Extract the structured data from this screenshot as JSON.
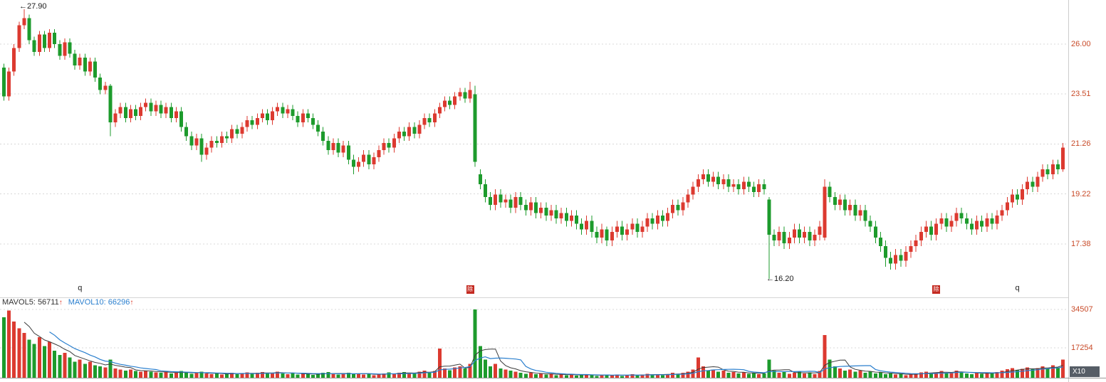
{
  "colors": {
    "up": "#dc3a30",
    "down": "#1d9b2c",
    "axis_text": "#c84a28",
    "grid": "#d8d8d8",
    "ma5": "#3c3c3c",
    "ma5_text": "#333333",
    "ma10": "#2a7fce",
    "arrow": "#dd3322",
    "badge_bg": "#c42a21",
    "x10_bg": "#565d66"
  },
  "axis": {
    "price_labels": [
      "26.00",
      "23.51",
      "21.26",
      "19.22",
      "17.38"
    ],
    "volume_labels": [
      "34507",
      "17254"
    ],
    "volume_multiplier": "X10"
  },
  "indicators": {
    "mavol5_name": "MAVOL5:",
    "mavol5_value": "56711",
    "mavol10_name": "MAVOL10:",
    "mavol10_value": "66296",
    "arrow": "↑"
  },
  "annotations": {
    "arrow_left": "←",
    "high": "27.90",
    "low": "16.20"
  },
  "chart_data": {
    "type": "candlestick_with_volume",
    "title": "",
    "price_scale": "log",
    "price_range_visible": [
      15.7,
      28.4
    ],
    "price_gridlines": [
      26.0,
      23.51,
      21.26,
      19.22,
      17.38
    ],
    "volume_gridlines": [
      34507,
      17254
    ],
    "high_marker": {
      "index": 4,
      "price": 27.9
    },
    "low_marker": {
      "index": 151,
      "price": 16.2
    },
    "event_markers": [
      {
        "index": 15,
        "label": "q",
        "type": "text"
      },
      {
        "index": 92,
        "label": "除",
        "type": "badge"
      },
      {
        "index": 184,
        "label": "除",
        "type": "badge"
      },
      {
        "index": 200,
        "label": "q",
        "type": "text"
      }
    ],
    "ohlc": [
      [
        24.8,
        25.0,
        23.2,
        23.4
      ],
      [
        23.4,
        24.8,
        23.2,
        24.6
      ],
      [
        24.6,
        26.0,
        24.4,
        25.8
      ],
      [
        25.8,
        27.2,
        25.6,
        27.0
      ],
      [
        27.0,
        27.9,
        26.8,
        27.4
      ],
      [
        27.4,
        27.6,
        26.0,
        26.2
      ],
      [
        26.2,
        26.4,
        25.4,
        25.6
      ],
      [
        25.6,
        26.7,
        25.4,
        26.5
      ],
      [
        26.5,
        26.7,
        25.6,
        25.8
      ],
      [
        25.8,
        26.8,
        25.6,
        26.6
      ],
      [
        26.6,
        26.8,
        25.8,
        26.0
      ],
      [
        26.0,
        26.2,
        25.2,
        25.4
      ],
      [
        25.4,
        26.3,
        25.2,
        26.1
      ],
      [
        26.1,
        26.3,
        25.3,
        25.5
      ],
      [
        25.5,
        25.7,
        24.7,
        24.9
      ],
      [
        24.9,
        25.5,
        24.7,
        25.3
      ],
      [
        25.3,
        25.5,
        24.4,
        24.6
      ],
      [
        24.6,
        25.3,
        24.4,
        25.1
      ],
      [
        25.1,
        25.3,
        24.1,
        24.3
      ],
      [
        24.3,
        24.5,
        23.5,
        23.7
      ],
      [
        23.7,
        24.1,
        23.5,
        23.9
      ],
      [
        23.9,
        24.0,
        21.6,
        22.2
      ],
      [
        22.2,
        22.8,
        22.0,
        22.6
      ],
      [
        22.6,
        23.1,
        22.4,
        22.9
      ],
      [
        22.9,
        23.1,
        22.2,
        22.4
      ],
      [
        22.4,
        23.0,
        22.2,
        22.8
      ],
      [
        22.8,
        23.0,
        22.3,
        22.5
      ],
      [
        22.5,
        23.1,
        22.3,
        22.9
      ],
      [
        22.9,
        23.3,
        22.7,
        23.1
      ],
      [
        23.1,
        23.3,
        22.5,
        22.7
      ],
      [
        22.7,
        23.2,
        22.5,
        23.0
      ],
      [
        23.0,
        23.2,
        22.4,
        22.6
      ],
      [
        22.6,
        23.1,
        22.4,
        22.9
      ],
      [
        22.9,
        23.1,
        22.2,
        22.4
      ],
      [
        22.4,
        22.9,
        22.2,
        22.7
      ],
      [
        22.7,
        22.9,
        21.8,
        22.0
      ],
      [
        22.0,
        22.2,
        21.4,
        21.6
      ],
      [
        21.6,
        21.8,
        21.0,
        21.2
      ],
      [
        21.2,
        21.7,
        21.0,
        21.5
      ],
      [
        21.5,
        21.7,
        20.5,
        20.8
      ],
      [
        20.8,
        21.3,
        20.6,
        21.1
      ],
      [
        21.1,
        21.6,
        20.9,
        21.4
      ],
      [
        21.4,
        21.6,
        21.1,
        21.3
      ],
      [
        21.3,
        21.8,
        21.1,
        21.6
      ],
      [
        21.6,
        21.8,
        21.3,
        21.5
      ],
      [
        21.5,
        22.1,
        21.3,
        21.9
      ],
      [
        21.9,
        22.1,
        21.5,
        21.7
      ],
      [
        21.7,
        22.2,
        21.5,
        22.0
      ],
      [
        22.0,
        22.5,
        21.8,
        22.3
      ],
      [
        22.3,
        22.5,
        21.9,
        22.1
      ],
      [
        22.1,
        22.6,
        21.9,
        22.4
      ],
      [
        22.4,
        22.8,
        22.2,
        22.6
      ],
      [
        22.6,
        22.8,
        22.1,
        22.3
      ],
      [
        22.3,
        22.9,
        22.1,
        22.7
      ],
      [
        22.7,
        23.1,
        22.5,
        22.9
      ],
      [
        22.9,
        23.1,
        22.4,
        22.6
      ],
      [
        22.6,
        23.0,
        22.4,
        22.8
      ],
      [
        22.8,
        23.0,
        22.3,
        22.5
      ],
      [
        22.5,
        22.7,
        22.0,
        22.2
      ],
      [
        22.2,
        22.8,
        22.0,
        22.6
      ],
      [
        22.6,
        22.8,
        22.2,
        22.4
      ],
      [
        22.4,
        22.6,
        21.9,
        22.1
      ],
      [
        22.1,
        22.3,
        21.6,
        21.8
      ],
      [
        21.8,
        22.0,
        21.2,
        21.4
      ],
      [
        21.4,
        21.6,
        20.8,
        21.0
      ],
      [
        21.0,
        21.5,
        20.8,
        21.3
      ],
      [
        21.3,
        21.5,
        20.7,
        20.9
      ],
      [
        20.9,
        21.4,
        20.7,
        21.2
      ],
      [
        21.2,
        21.4,
        20.4,
        20.6
      ],
      [
        20.6,
        20.8,
        20.0,
        20.3
      ],
      [
        20.3,
        20.7,
        20.1,
        20.5
      ],
      [
        20.5,
        21.0,
        20.3,
        20.8
      ],
      [
        20.8,
        21.0,
        20.2,
        20.4
      ],
      [
        20.4,
        20.9,
        20.2,
        20.7
      ],
      [
        20.7,
        21.2,
        20.5,
        21.0
      ],
      [
        21.0,
        21.5,
        20.8,
        21.3
      ],
      [
        21.3,
        21.5,
        20.9,
        21.1
      ],
      [
        21.1,
        21.7,
        20.9,
        21.5
      ],
      [
        21.5,
        22.0,
        21.3,
        21.8
      ],
      [
        21.8,
        22.0,
        21.4,
        21.6
      ],
      [
        21.6,
        22.2,
        21.4,
        22.0
      ],
      [
        22.0,
        22.2,
        21.5,
        21.7
      ],
      [
        21.7,
        22.3,
        21.5,
        22.1
      ],
      [
        22.1,
        22.6,
        21.9,
        22.4
      ],
      [
        22.4,
        22.6,
        22.0,
        22.2
      ],
      [
        22.2,
        22.8,
        22.0,
        22.6
      ],
      [
        22.6,
        23.1,
        22.4,
        22.9
      ],
      [
        22.9,
        23.4,
        22.7,
        23.2
      ],
      [
        23.2,
        23.4,
        22.8,
        23.0
      ],
      [
        23.0,
        23.6,
        22.8,
        23.4
      ],
      [
        23.4,
        23.8,
        23.2,
        23.6
      ],
      [
        23.6,
        23.8,
        23.1,
        23.3
      ],
      [
        23.3,
        24.1,
        23.1,
        23.7
      ],
      [
        23.5,
        23.9,
        20.3,
        20.5
      ],
      [
        20.0,
        20.2,
        19.4,
        19.6
      ],
      [
        19.6,
        19.8,
        18.9,
        19.1
      ],
      [
        19.1,
        19.3,
        18.6,
        18.8
      ],
      [
        18.8,
        19.4,
        18.6,
        19.2
      ],
      [
        19.2,
        19.4,
        18.7,
        18.9
      ],
      [
        18.9,
        19.2,
        18.7,
        19.0
      ],
      [
        19.0,
        19.2,
        18.5,
        18.7
      ],
      [
        18.7,
        19.3,
        18.5,
        19.1
      ],
      [
        19.1,
        19.3,
        18.6,
        18.8
      ],
      [
        18.8,
        19.0,
        18.4,
        18.6
      ],
      [
        18.6,
        19.1,
        18.4,
        18.9
      ],
      [
        18.9,
        19.1,
        18.3,
        18.5
      ],
      [
        18.5,
        18.9,
        18.3,
        18.7
      ],
      [
        18.7,
        18.9,
        18.2,
        18.4
      ],
      [
        18.4,
        18.8,
        18.2,
        18.6
      ],
      [
        18.6,
        18.8,
        18.1,
        18.3
      ],
      [
        18.3,
        18.7,
        18.1,
        18.5
      ],
      [
        18.5,
        18.7,
        18.0,
        18.2
      ],
      [
        18.2,
        18.6,
        18.0,
        18.4
      ],
      [
        18.4,
        18.6,
        17.9,
        18.1
      ],
      [
        18.1,
        18.3,
        17.7,
        17.9
      ],
      [
        17.9,
        18.4,
        17.7,
        18.2
      ],
      [
        18.2,
        18.4,
        17.6,
        17.8
      ],
      [
        17.8,
        18.0,
        17.4,
        17.6
      ],
      [
        17.6,
        18.1,
        17.4,
        17.9
      ],
      [
        17.9,
        18.0,
        17.3,
        17.5
      ],
      [
        17.5,
        18.0,
        17.3,
        17.8
      ],
      [
        17.8,
        18.2,
        17.6,
        18.0
      ],
      [
        18.0,
        18.2,
        17.5,
        17.7
      ],
      [
        17.7,
        18.1,
        17.5,
        17.9
      ],
      [
        17.9,
        18.3,
        17.7,
        18.1
      ],
      [
        18.1,
        18.3,
        17.6,
        17.8
      ],
      [
        17.8,
        18.2,
        17.6,
        18.0
      ],
      [
        18.0,
        18.5,
        17.8,
        18.3
      ],
      [
        18.3,
        18.5,
        17.9,
        18.1
      ],
      [
        18.1,
        18.6,
        17.9,
        18.4
      ],
      [
        18.4,
        18.6,
        18.0,
        18.2
      ],
      [
        18.2,
        18.7,
        18.0,
        18.5
      ],
      [
        18.5,
        19.0,
        18.3,
        18.8
      ],
      [
        18.8,
        19.0,
        18.4,
        18.6
      ],
      [
        18.6,
        19.1,
        18.4,
        18.9
      ],
      [
        18.9,
        19.4,
        18.7,
        19.2
      ],
      [
        19.2,
        19.7,
        19.0,
        19.5
      ],
      [
        19.5,
        20.0,
        19.3,
        19.8
      ],
      [
        19.8,
        20.2,
        19.6,
        20.0
      ],
      [
        20.0,
        20.2,
        19.5,
        19.7
      ],
      [
        19.7,
        20.1,
        19.5,
        19.9
      ],
      [
        19.9,
        20.1,
        19.4,
        19.6
      ],
      [
        19.6,
        20.0,
        19.4,
        19.8
      ],
      [
        19.8,
        20.0,
        19.3,
        19.5
      ],
      [
        19.5,
        19.8,
        19.3,
        19.6
      ],
      [
        19.6,
        19.8,
        19.2,
        19.4
      ],
      [
        19.4,
        19.9,
        19.2,
        19.7
      ],
      [
        19.7,
        19.9,
        19.3,
        19.5
      ],
      [
        19.5,
        19.7,
        19.1,
        19.3
      ],
      [
        19.3,
        19.8,
        19.1,
        19.6
      ],
      [
        19.6,
        19.8,
        19.2,
        19.4
      ],
      [
        19.0,
        19.1,
        16.2,
        17.7
      ],
      [
        17.7,
        17.9,
        17.3,
        17.5
      ],
      [
        17.5,
        18.0,
        17.3,
        17.8
      ],
      [
        17.8,
        18.0,
        17.2,
        17.4
      ],
      [
        17.4,
        17.8,
        17.2,
        17.6
      ],
      [
        17.6,
        18.1,
        17.4,
        17.9
      ],
      [
        17.9,
        18.1,
        17.4,
        17.6
      ],
      [
        17.6,
        18.0,
        17.4,
        17.8
      ],
      [
        17.8,
        18.0,
        17.3,
        17.5
      ],
      [
        17.5,
        17.9,
        17.3,
        17.7
      ],
      [
        17.7,
        18.2,
        17.5,
        18.0
      ],
      [
        17.6,
        19.8,
        17.5,
        19.5
      ],
      [
        19.5,
        19.7,
        18.9,
        19.1
      ],
      [
        19.1,
        19.3,
        18.6,
        18.8
      ],
      [
        18.8,
        19.2,
        18.6,
        19.0
      ],
      [
        19.0,
        19.2,
        18.4,
        18.6
      ],
      [
        18.6,
        19.0,
        18.4,
        18.8
      ],
      [
        18.8,
        19.0,
        18.2,
        18.4
      ],
      [
        18.4,
        18.8,
        18.2,
        18.6
      ],
      [
        18.6,
        18.8,
        18.0,
        18.2
      ],
      [
        18.2,
        18.4,
        17.8,
        18.0
      ],
      [
        18.0,
        18.2,
        17.4,
        17.6
      ],
      [
        17.6,
        17.8,
        17.1,
        17.3
      ],
      [
        17.3,
        17.5,
        16.6,
        16.9
      ],
      [
        16.9,
        17.1,
        16.5,
        16.7
      ],
      [
        16.7,
        17.2,
        16.5,
        17.0
      ],
      [
        17.0,
        17.2,
        16.6,
        16.8
      ],
      [
        16.8,
        17.3,
        16.6,
        17.1
      ],
      [
        17.1,
        17.5,
        16.9,
        17.3
      ],
      [
        17.3,
        17.7,
        17.1,
        17.5
      ],
      [
        17.5,
        18.0,
        17.3,
        17.8
      ],
      [
        17.8,
        18.2,
        17.6,
        18.0
      ],
      [
        18.0,
        18.2,
        17.5,
        17.7
      ],
      [
        17.7,
        18.3,
        17.5,
        18.1
      ],
      [
        18.1,
        18.5,
        17.9,
        18.3
      ],
      [
        18.3,
        18.5,
        17.8,
        18.0
      ],
      [
        18.0,
        18.4,
        17.8,
        18.2
      ],
      [
        18.2,
        18.7,
        18.0,
        18.5
      ],
      [
        18.5,
        18.7,
        18.1,
        18.3
      ],
      [
        18.3,
        18.5,
        17.9,
        18.1
      ],
      [
        18.1,
        18.3,
        17.7,
        17.9
      ],
      [
        17.9,
        18.4,
        17.7,
        18.2
      ],
      [
        18.2,
        18.4,
        17.8,
        18.0
      ],
      [
        18.0,
        18.5,
        17.8,
        18.3
      ],
      [
        18.3,
        18.5,
        17.9,
        18.1
      ],
      [
        18.1,
        18.6,
        17.9,
        18.4
      ],
      [
        18.4,
        18.8,
        18.2,
        18.6
      ],
      [
        18.6,
        19.1,
        18.4,
        18.9
      ],
      [
        18.9,
        19.4,
        18.7,
        19.2
      ],
      [
        19.2,
        19.4,
        18.8,
        19.0
      ],
      [
        19.0,
        19.6,
        18.8,
        19.4
      ],
      [
        19.4,
        19.9,
        19.2,
        19.7
      ],
      [
        19.7,
        19.9,
        19.3,
        19.5
      ],
      [
        19.5,
        20.1,
        19.3,
        19.9
      ],
      [
        19.9,
        20.4,
        19.7,
        20.2
      ],
      [
        20.2,
        20.4,
        19.8,
        20.0
      ],
      [
        20.0,
        20.6,
        19.8,
        20.4
      ],
      [
        20.4,
        20.6,
        20.0,
        20.2
      ],
      [
        20.2,
        21.3,
        20.1,
        21.1
      ]
    ],
    "volumes": [
      31000,
      34000,
      29000,
      26000,
      24000,
      21000,
      19000,
      22000,
      18000,
      20000,
      16000,
      14000,
      15000,
      13000,
      11000,
      12000,
      10000,
      11000,
      9500,
      9000,
      8500,
      12000,
      8000,
      7500,
      7000,
      7500,
      6800,
      6500,
      7000,
      6600,
      6300,
      6000,
      6400,
      5800,
      6200,
      6800,
      6000,
      5600,
      5900,
      6500,
      5700,
      5400,
      5800,
      5300,
      5600,
      6000,
      5500,
      5800,
      6200,
      5600,
      6000,
      6400,
      5700,
      6100,
      6500,
      5800,
      5500,
      5900,
      5300,
      5700,
      5400,
      5100,
      5600,
      6000,
      6400,
      5500,
      5200,
      5600,
      6100,
      5400,
      5800,
      5200,
      5600,
      5000,
      5400,
      5800,
      6200,
      5500,
      6000,
      6400,
      5700,
      6100,
      6600,
      7000,
      6300,
      6800,
      17000,
      8000,
      7200,
      8500,
      9000,
      8000,
      10000,
      34500,
      18000,
      12000,
      9000,
      10000,
      8000,
      7500,
      7000,
      6500,
      6000,
      5600,
      6000,
      5400,
      5800,
      5200,
      5600,
      5000,
      5400,
      5000,
      5300,
      4800,
      5100,
      5500,
      4900,
      4600,
      5000,
      5300,
      4800,
      5200,
      4700,
      5000,
      5400,
      4900,
      5200,
      5600,
      5100,
      5500,
      5000,
      5400,
      6000,
      5500,
      6000,
      6500,
      7500,
      13000,
      9000,
      7000,
      7500,
      6500,
      7000,
      6000,
      6400,
      5800,
      6200,
      5600,
      6000,
      5400,
      5800,
      12000,
      7000,
      6000,
      6400,
      5600,
      6000,
      6500,
      5800,
      6200,
      5500,
      6800,
      23000,
      12000,
      9000,
      8000,
      7000,
      7500,
      6500,
      7000,
      6000,
      6500,
      5800,
      6200,
      5400,
      5800,
      5200,
      5600,
      5000,
      5400,
      5800,
      6200,
      6600,
      5800,
      6200,
      6800,
      6000,
      6400,
      7000,
      6200,
      5800,
      5400,
      6000,
      5600,
      6200,
      5800,
      6400,
      7000,
      7600,
      8200,
      7200,
      7800,
      8400,
      7600,
      8200,
      9000,
      8000,
      9500,
      8500,
      12000
    ]
  }
}
